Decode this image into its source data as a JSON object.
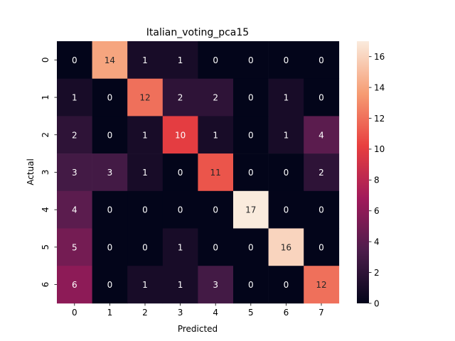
{
  "chart_data": {
    "type": "heatmap",
    "title": "Italian_voting_pca15",
    "xlabel": "Predicted",
    "ylabel": "Actual",
    "x_categories": [
      "0",
      "1",
      "2",
      "3",
      "4",
      "5",
      "6",
      "7"
    ],
    "y_categories": [
      "0",
      "1",
      "2",
      "3",
      "4",
      "5",
      "6"
    ],
    "values": [
      [
        0,
        14,
        1,
        1,
        0,
        0,
        0,
        0
      ],
      [
        1,
        0,
        12,
        2,
        2,
        0,
        1,
        0
      ],
      [
        2,
        0,
        1,
        10,
        1,
        0,
        1,
        4
      ],
      [
        3,
        3,
        1,
        0,
        11,
        0,
        0,
        2
      ],
      [
        4,
        0,
        0,
        0,
        0,
        17,
        0,
        0
      ],
      [
        5,
        0,
        0,
        1,
        0,
        0,
        16,
        0
      ],
      [
        6,
        0,
        1,
        1,
        3,
        0,
        0,
        12
      ]
    ],
    "colorbar": {
      "min": 0,
      "max": 17,
      "ticks": [
        0,
        2,
        4,
        6,
        8,
        10,
        12,
        14,
        16
      ]
    },
    "colormap": "rocket",
    "colormap_stops": [
      "#03051a",
      "#4c1d4b",
      "#a11a5b",
      "#e83f3f",
      "#f69c73",
      "#faebdd"
    ]
  }
}
